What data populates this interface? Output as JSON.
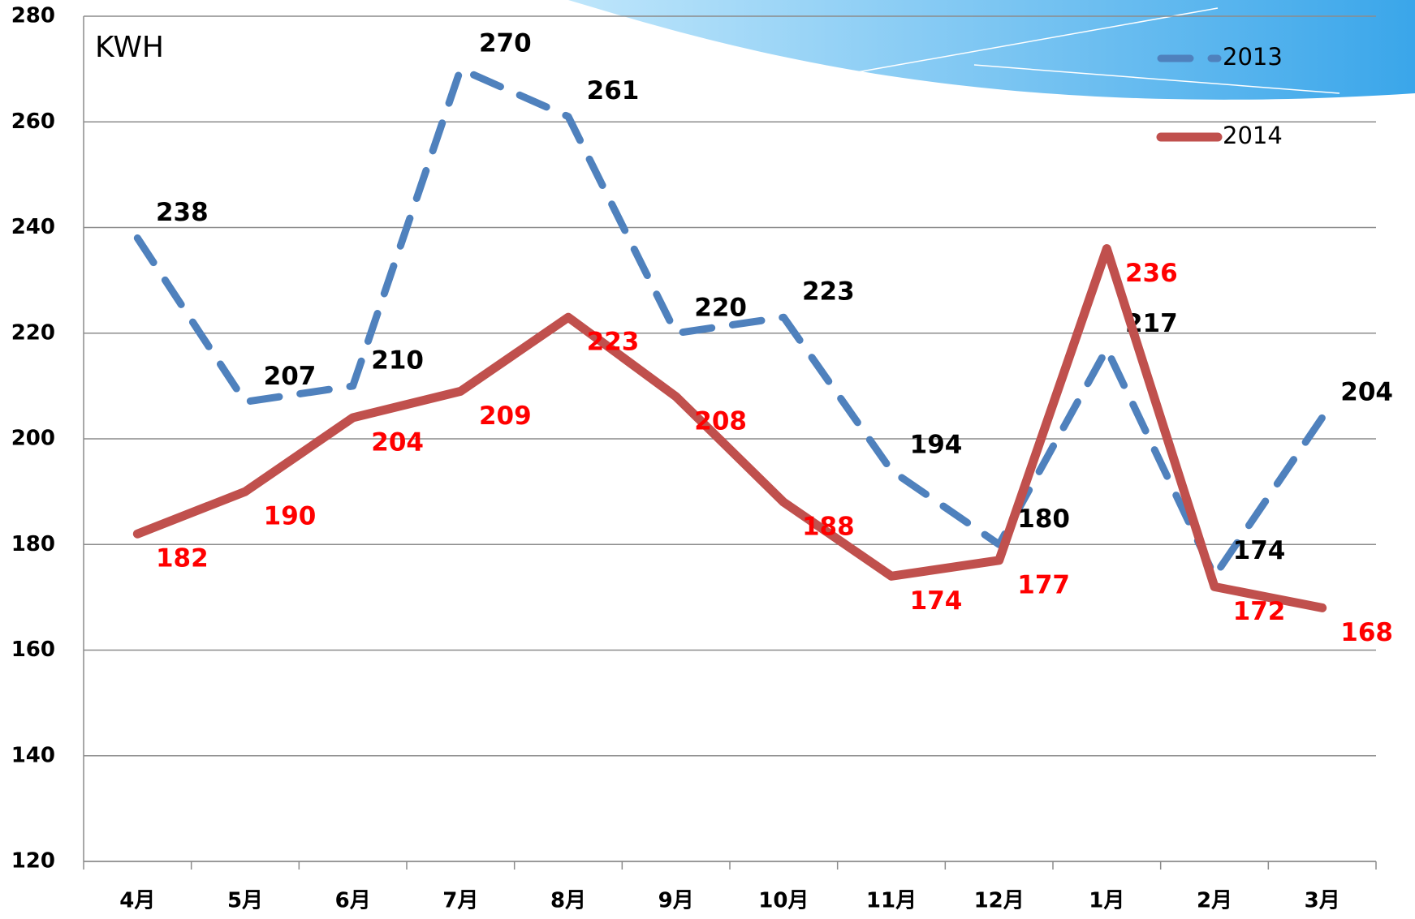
{
  "chart_data": {
    "type": "line",
    "unit_label": "KWH",
    "categories": [
      "4月",
      "5月",
      "6月",
      "7月",
      "8月",
      "9月",
      "10月",
      "11月",
      "12月",
      "1月",
      "2月",
      "3月"
    ],
    "series": [
      {
        "name": "2013",
        "color": "#4f81bd",
        "style": "dashed",
        "label_color": "#000000",
        "values": [
          238,
          207,
          210,
          270,
          261,
          220,
          223,
          194,
          180,
          217,
          174,
          204
        ]
      },
      {
        "name": "2014",
        "color": "#c0504d",
        "style": "solid",
        "label_color": "#ff0000",
        "values": [
          182,
          190,
          204,
          209,
          223,
          208,
          188,
          174,
          177,
          236,
          172,
          168
        ]
      }
    ],
    "ylim": [
      120,
      280
    ],
    "yticks": [
      120,
      140,
      160,
      180,
      200,
      220,
      240,
      260,
      280
    ],
    "grid": true,
    "legend": "top-right"
  }
}
